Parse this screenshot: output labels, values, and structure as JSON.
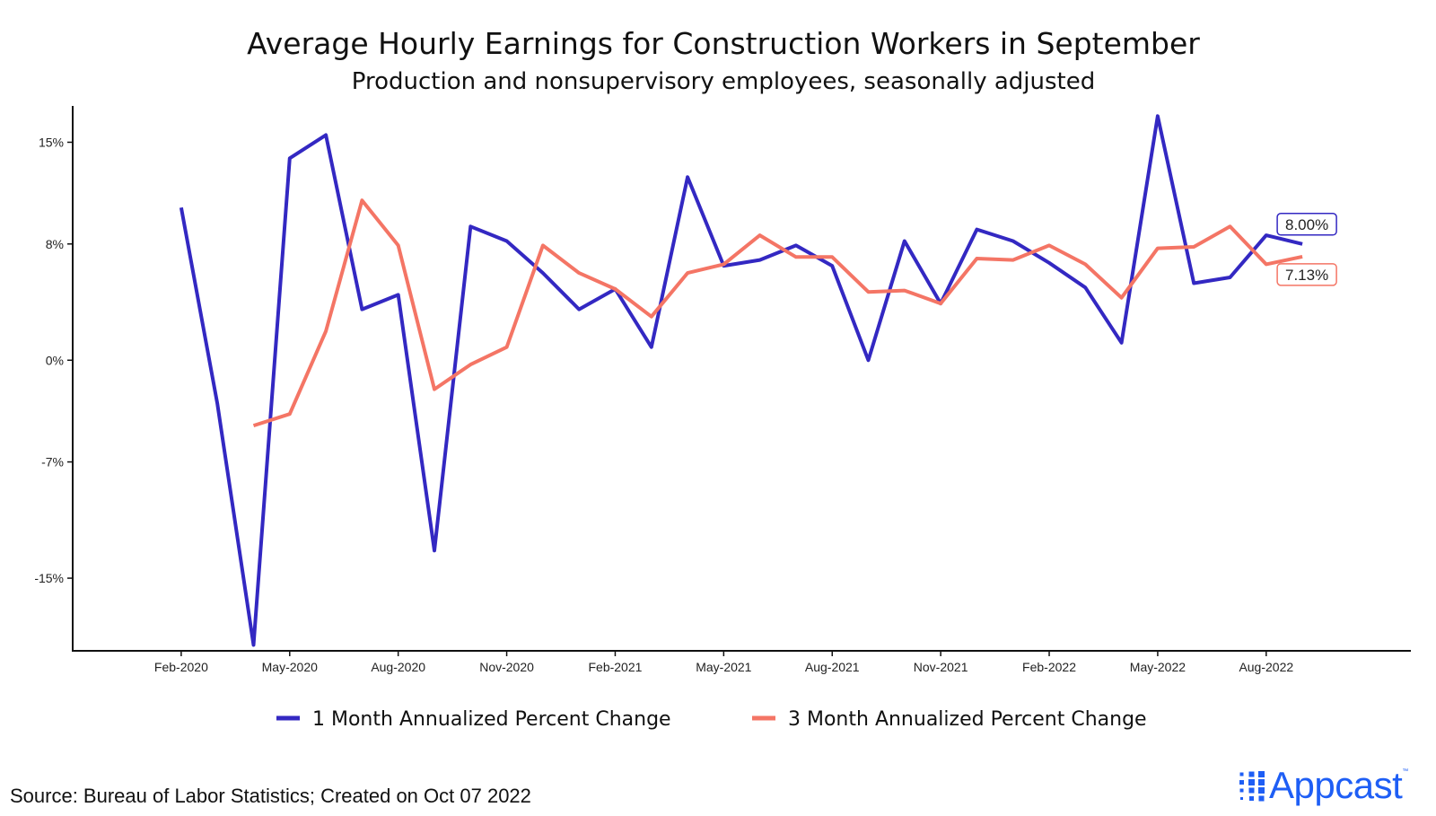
{
  "colors": {
    "series1": "#3328c2",
    "series2": "#f47565",
    "logo": "#1e5ef5",
    "axis": "#111111"
  },
  "chart_data": {
    "type": "line",
    "title": "Average Hourly Earnings for Construction Workers in September",
    "subtitle": "Production and nonsupervisory employees, seasonally adjusted",
    "xlabel": "",
    "ylabel": "",
    "ylim": [
      -20,
      17.5
    ],
    "y_ticks": [
      15,
      8,
      0,
      -7,
      -15
    ],
    "y_tick_labels": [
      "15%",
      "8%",
      "0%",
      "-7%",
      "-15%"
    ],
    "x_ticks": [
      "2020-02",
      "2020-05",
      "2020-08",
      "2020-11",
      "2021-02",
      "2021-05",
      "2021-08",
      "2021-11",
      "2022-02",
      "2022-05",
      "2022-08"
    ],
    "x_tick_labels": [
      "Feb-2020",
      "May-2020",
      "Aug-2020",
      "Nov-2020",
      "Feb-2021",
      "May-2021",
      "Aug-2021",
      "Nov-2021",
      "Feb-2022",
      "May-2022",
      "Aug-2022"
    ],
    "x_range": [
      "2019-11",
      "2022-12"
    ],
    "x": [
      "2020-02",
      "2020-03",
      "2020-04",
      "2020-05",
      "2020-06",
      "2020-07",
      "2020-08",
      "2020-09",
      "2020-10",
      "2020-11",
      "2020-12",
      "2021-01",
      "2021-02",
      "2021-03",
      "2021-04",
      "2021-05",
      "2021-06",
      "2021-07",
      "2021-08",
      "2021-09",
      "2021-10",
      "2021-11",
      "2021-12",
      "2022-01",
      "2022-02",
      "2022-03",
      "2022-04",
      "2022-05",
      "2022-06",
      "2022-07",
      "2022-08",
      "2022-09"
    ],
    "series": [
      {
        "name": "1 Month Annualized Percent Change",
        "values": [
          10.5,
          -3.0,
          -19.6,
          13.9,
          15.5,
          3.5,
          4.5,
          -13.1,
          9.2,
          8.2,
          6.0,
          3.5,
          4.9,
          0.9,
          12.6,
          6.5,
          6.9,
          7.9,
          6.5,
          0.0,
          8.2,
          3.9,
          9.0,
          8.2,
          6.7,
          5.0,
          1.2,
          16.8,
          5.3,
          5.7,
          8.6,
          8.0
        ],
        "end_label": "8.00%"
      },
      {
        "name": "3 Month Annualized Percent Change",
        "values": [
          null,
          null,
          -4.5,
          -3.7,
          2.0,
          11.0,
          7.9,
          -2.0,
          -0.3,
          0.9,
          7.9,
          6.0,
          4.9,
          3.0,
          6.0,
          6.6,
          8.6,
          7.1,
          7.1,
          4.7,
          4.8,
          3.9,
          7.0,
          6.9,
          7.9,
          6.6,
          4.3,
          7.7,
          7.8,
          9.2,
          6.6,
          7.13
        ],
        "end_label": "7.13%"
      }
    ],
    "grid": false,
    "legend_position": "bottom"
  },
  "footer": {
    "source": "Source: Bureau of Labor Statistics; Created on Oct 07 2022",
    "logo_text": "Appcast",
    "logo_tm": "™"
  }
}
